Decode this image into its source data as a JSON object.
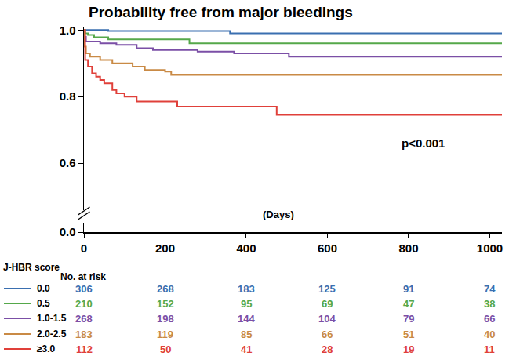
{
  "chart_data": {
    "type": "step",
    "title": "Probability free from major bleedings",
    "xlabel": "(Days)",
    "xlim": [
      0,
      1030
    ],
    "xticks": [
      0,
      200,
      400,
      600,
      800,
      1000
    ],
    "ylim": [
      0.46,
      1.01
    ],
    "yticks": [
      0.6,
      0.8,
      {
        "value": 1.0,
        "label": "1.0"
      }
    ],
    "y2lim": [
      0,
      0.025
    ],
    "y2ticks": [
      {
        "value": 0,
        "label": "0.0"
      }
    ],
    "grid": false,
    "legend_title": "J-HBR score",
    "risk_table_title": "No. at risk",
    "annotations": [
      {
        "text": "p<0.001",
        "x": 835,
        "y": 0.66
      }
    ],
    "series": [
      {
        "name": "0.0",
        "color": "#3a6fb0",
        "x": [
          0,
          60,
          360,
          1030
        ],
        "values": [
          1.0,
          0.997,
          0.99,
          0.99
        ],
        "at_risk": [
          306,
          268,
          183,
          125,
          91,
          74
        ]
      },
      {
        "name": "0.5",
        "color": "#55a84a",
        "x": [
          0,
          3,
          10,
          25,
          60,
          260,
          1030
        ],
        "values": [
          1.0,
          0.99,
          0.985,
          0.978,
          0.972,
          0.96,
          0.96
        ],
        "at_risk": [
          210,
          152,
          95,
          69,
          47,
          38
        ]
      },
      {
        "name": "1.0-1.5",
        "color": "#7b4fa6",
        "x": [
          0,
          2,
          5,
          40,
          80,
          130,
          170,
          280,
          370,
          505,
          1030
        ],
        "values": [
          1.0,
          0.98,
          0.965,
          0.96,
          0.955,
          0.945,
          0.94,
          0.935,
          0.93,
          0.92,
          0.92
        ],
        "at_risk": [
          268,
          198,
          144,
          104,
          79,
          66
        ]
      },
      {
        "name": "2.0-2.5",
        "color": "#c98a45",
        "x": [
          0,
          2,
          5,
          15,
          40,
          70,
          120,
          150,
          200,
          215,
          1030
        ],
        "values": [
          1.0,
          0.95,
          0.93,
          0.92,
          0.91,
          0.9,
          0.89,
          0.88,
          0.875,
          0.865,
          0.865
        ],
        "at_risk": [
          183,
          119,
          85,
          66,
          51,
          40
        ]
      },
      {
        "name": "≥3.0",
        "color": "#e0403a",
        "x": [
          0,
          3,
          10,
          20,
          30,
          40,
          50,
          70,
          80,
          100,
          130,
          230,
          475,
          1030
        ],
        "values": [
          1.0,
          0.91,
          0.89,
          0.87,
          0.86,
          0.85,
          0.84,
          0.82,
          0.81,
          0.8,
          0.785,
          0.77,
          0.745,
          0.745
        ],
        "at_risk": [
          112,
          50,
          41,
          28,
          19,
          11
        ]
      }
    ]
  }
}
